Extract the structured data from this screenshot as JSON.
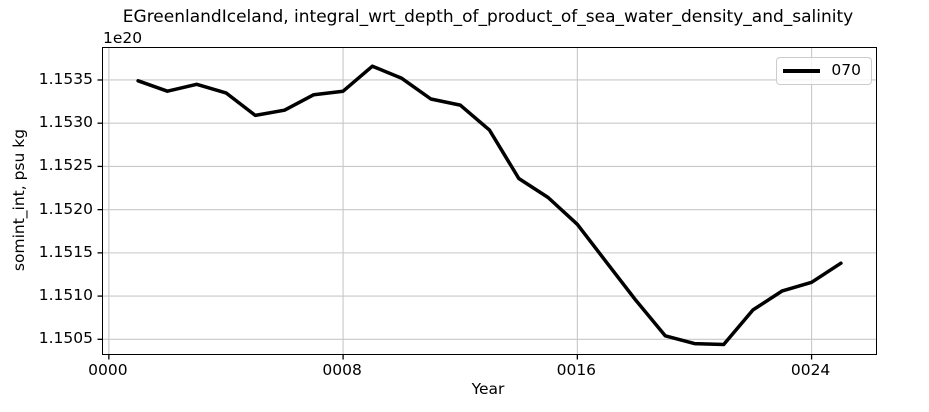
{
  "figure": {
    "title": "EGreenlandIceland, integral_wrt_depth_of_product_of_sea_water_density_and_salinity",
    "y_offset_label": "1e20",
    "x_axis_label": "Year",
    "y_axis_label": "somint_int, psu kg",
    "legend": {
      "position": "upper right",
      "entries": [
        {
          "label": "070",
          "line_color": "#000000"
        }
      ]
    }
  },
  "colors": {
    "line": "#000000",
    "grid": "#c8c8c8",
    "spine": "#000000",
    "text": "#000000",
    "legend_border": "#cccccc",
    "background": "#ffffff"
  },
  "chart_data": {
    "type": "line",
    "title": "EGreenlandIceland, integral_wrt_depth_of_product_of_sea_water_density_and_salinity",
    "xlabel": "Year",
    "ylabel": "somint_int, psu kg",
    "y_scale_offset_text": "1e20",
    "grid": true,
    "legend_position": "upper right",
    "xlim": [
      -0.2,
      26.2
    ],
    "ylim": [
      1.15033,
      1.15387
    ],
    "x_ticks": [
      {
        "value": 0,
        "label": "0000"
      },
      {
        "value": 8,
        "label": "0008"
      },
      {
        "value": 16,
        "label": "0016"
      },
      {
        "value": 24,
        "label": "0024"
      }
    ],
    "y_ticks": [
      {
        "value": 1.1505,
        "label": "1.1505"
      },
      {
        "value": 1.151,
        "label": "1.1510"
      },
      {
        "value": 1.1515,
        "label": "1.1515"
      },
      {
        "value": 1.152,
        "label": "1.1520"
      },
      {
        "value": 1.1525,
        "label": "1.1525"
      },
      {
        "value": 1.153,
        "label": "1.1530"
      },
      {
        "value": 1.1535,
        "label": "1.1535"
      }
    ],
    "series": [
      {
        "name": "070",
        "color": "#000000",
        "line_width": 3.5,
        "x": [
          1,
          2,
          3,
          4,
          5,
          6,
          7,
          8,
          9,
          10,
          11,
          12,
          13,
          14,
          15,
          16,
          17,
          18,
          19,
          20,
          21,
          22,
          23,
          24,
          25
        ],
        "y": [
          1.15349,
          1.15337,
          1.15345,
          1.15335,
          1.15309,
          1.15315,
          1.15333,
          1.15337,
          1.15366,
          1.15352,
          1.15328,
          1.15321,
          1.15292,
          1.15236,
          1.15214,
          1.15183,
          1.15139,
          1.15095,
          1.15054,
          1.15045,
          1.15044,
          1.15084,
          1.15106,
          1.15116,
          1.15138
        ]
      }
    ]
  }
}
